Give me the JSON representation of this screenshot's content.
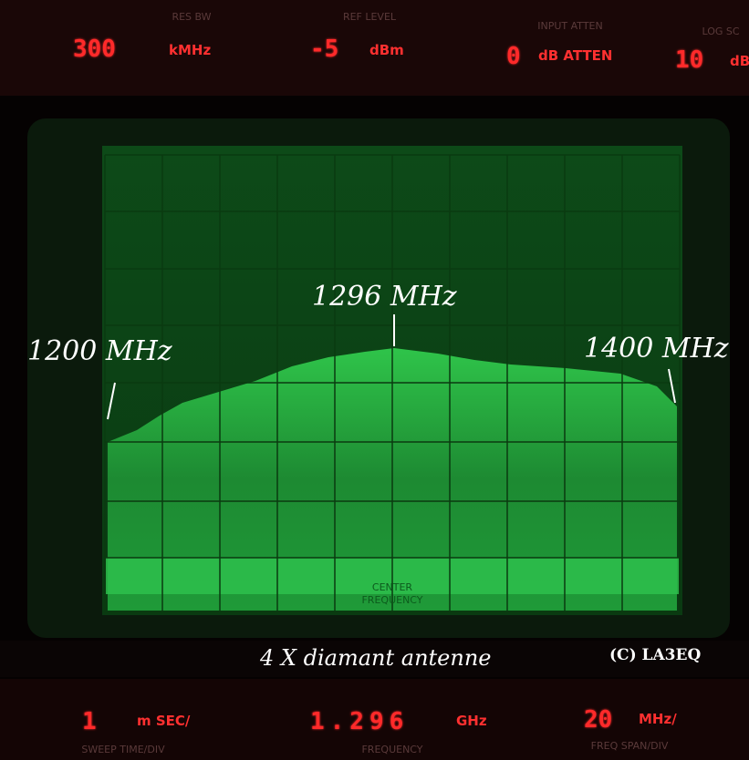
{
  "top_panel": {
    "res_bw": {
      "label": "RES BW",
      "value": "300",
      "unit": "kMHz"
    },
    "ref_level": {
      "label": "REF LEVEL",
      "value": "-5",
      "unit": "dBm"
    },
    "input_atten": {
      "label": "INPUT ATTEN",
      "value": "0",
      "unit": "dB ATTEN"
    },
    "log_scale": {
      "label": "LOG SC",
      "value": "10",
      "unit": "dB"
    }
  },
  "bottom_panel": {
    "sweep_time": {
      "label": "SWEEP TIME/DIV",
      "value": "1",
      "unit": "m SEC/"
    },
    "frequency": {
      "label": "FREQUENCY",
      "value": "1.296",
      "unit": "GHz"
    },
    "span": {
      "label": "FREQ SPAN/DIV",
      "value": "20",
      "unit": "MHz/"
    }
  },
  "screen": {
    "center_label": [
      "CENTER",
      "FREQUENCY"
    ]
  },
  "annotations": {
    "center": "1296 MHz",
    "left": "1200 MHz",
    "right": "1400 MHz",
    "caption": "4 X diamant antenne",
    "credit": "(C) LA3EQ"
  }
}
